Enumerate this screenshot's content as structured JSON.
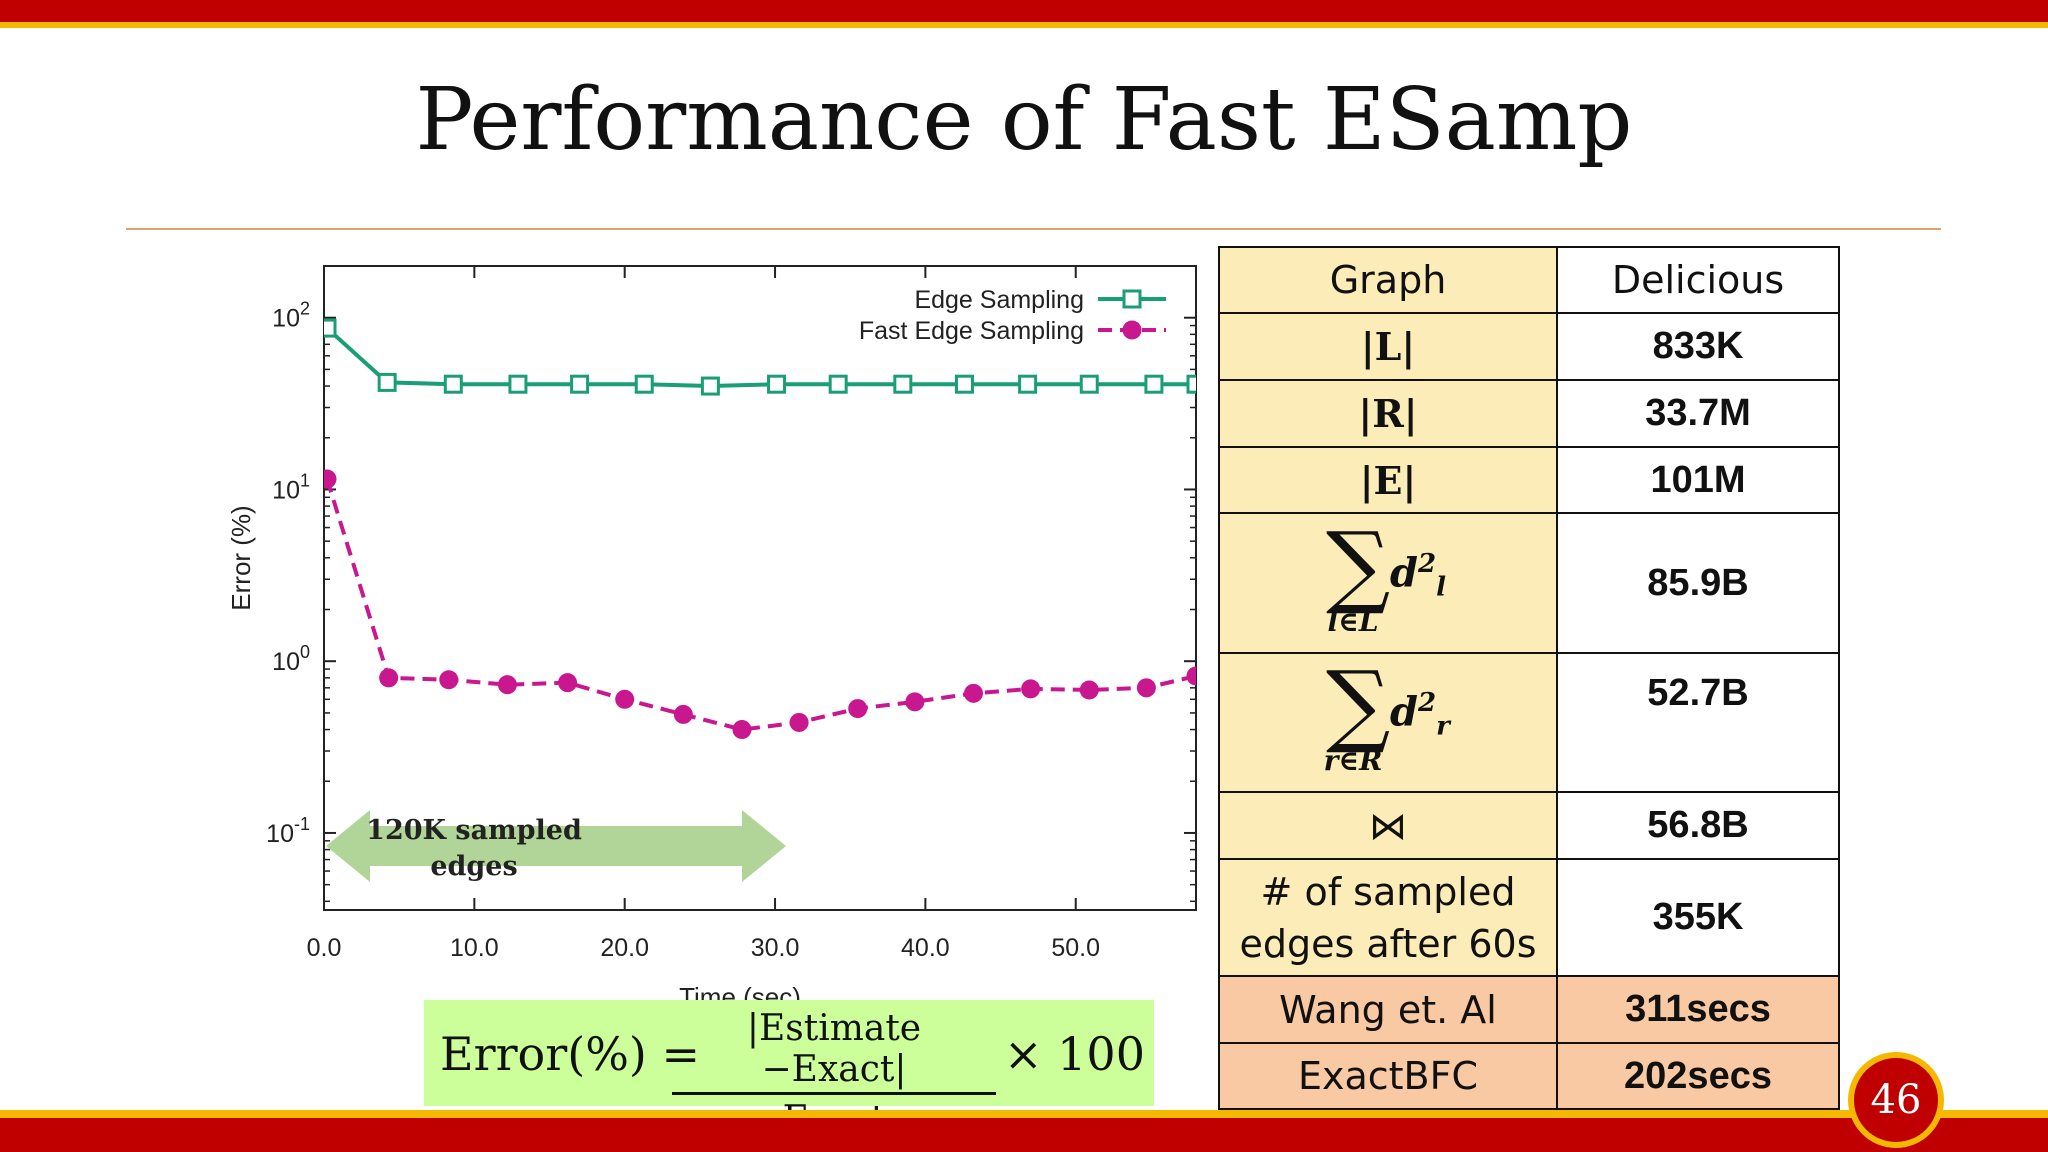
{
  "slide": {
    "title": "Performance of Fast ESamp",
    "page_number": "46",
    "colors": {
      "top_bar": "#c00000",
      "gold": "#f5b800",
      "table_label_bg": "#fcecb8",
      "table_orange_bg": "#f8c9a2",
      "formula_bg": "#ccff99"
    }
  },
  "chart_data": {
    "type": "line",
    "xlabel": "Time (sec)",
    "ylabel": "Error (%)",
    "x_ticks": [
      "0.0",
      "10.0",
      "20.0",
      "30.0",
      "40.0",
      "50.0"
    ],
    "x_tick_values": [
      0,
      10,
      20,
      30,
      40,
      50
    ],
    "y_ticks": [
      {
        "base": "10",
        "exp": "2",
        "value": 100
      },
      {
        "base": "10",
        "exp": "1",
        "value": 10
      },
      {
        "base": "10",
        "exp": "0",
        "value": 1
      },
      {
        "base": "10",
        "exp": "-1",
        "value": 0.1
      }
    ],
    "xlim": [
      0,
      58
    ],
    "ylim": [
      0.0356,
      200
    ],
    "y_scale": "log",
    "legend_position": "top-right",
    "grid": false,
    "series": [
      {
        "name": "Edge Sampling",
        "color": "#1a9e77",
        "style": "solid",
        "marker": "square",
        "x": [
          0.2,
          4.2,
          8.6,
          12.9,
          17.0,
          21.3,
          25.7,
          30.1,
          34.2,
          38.5,
          42.6,
          46.8,
          50.9,
          55.2,
          58
        ],
        "y": [
          87,
          42,
          41,
          41,
          41,
          41,
          40,
          41,
          41,
          41,
          41,
          41,
          41,
          41,
          41
        ]
      },
      {
        "name": "Fast Edge Sampling",
        "color": "#c8178f",
        "style": "dashed",
        "marker": "circle",
        "x": [
          0.2,
          4.3,
          8.3,
          12.2,
          16.2,
          20.0,
          23.9,
          27.8,
          31.6,
          35.5,
          39.3,
          43.2,
          47.0,
          50.9,
          54.7,
          58
        ],
        "y": [
          11.5,
          0.8,
          0.78,
          0.73,
          0.75,
          0.6,
          0.49,
          0.4,
          0.44,
          0.53,
          0.58,
          0.65,
          0.69,
          0.68,
          0.7,
          0.82
        ]
      }
    ],
    "annotation": {
      "text_line1": "120K sampled",
      "text_line2": "edges"
    }
  },
  "formula": {
    "lhs": "Error(%) =",
    "numerator": "|Estimate −Exact|",
    "denominator": "Exact",
    "rhs": "× 100"
  },
  "table": {
    "header": {
      "label": "Graph",
      "value": "Delicious"
    },
    "L": {
      "label": "|L|",
      "value": "833K"
    },
    "R": {
      "label": "|R|",
      "value": "33.7M"
    },
    "E": {
      "label": "|E|",
      "value": "101M"
    },
    "sum_l": {
      "sigma": "∑",
      "sub": "l∈L",
      "term_base": "d",
      "term_sup": "2",
      "term_sub": "l",
      "value": "85.9B"
    },
    "sum_r": {
      "sigma": "∑",
      "sub": "r∈R",
      "term_base": "d",
      "term_sup": "2",
      "term_sub": "r",
      "value": "52.7B"
    },
    "join": {
      "label": "⋈",
      "value": "56.8B"
    },
    "sampled": {
      "label_line1": "# of sampled",
      "label_line2": "edges after 60s",
      "value": "355K"
    },
    "wang": {
      "label": "Wang et. Al",
      "value": "311secs"
    },
    "exact": {
      "label": "ExactBFC",
      "value": "202secs"
    }
  }
}
